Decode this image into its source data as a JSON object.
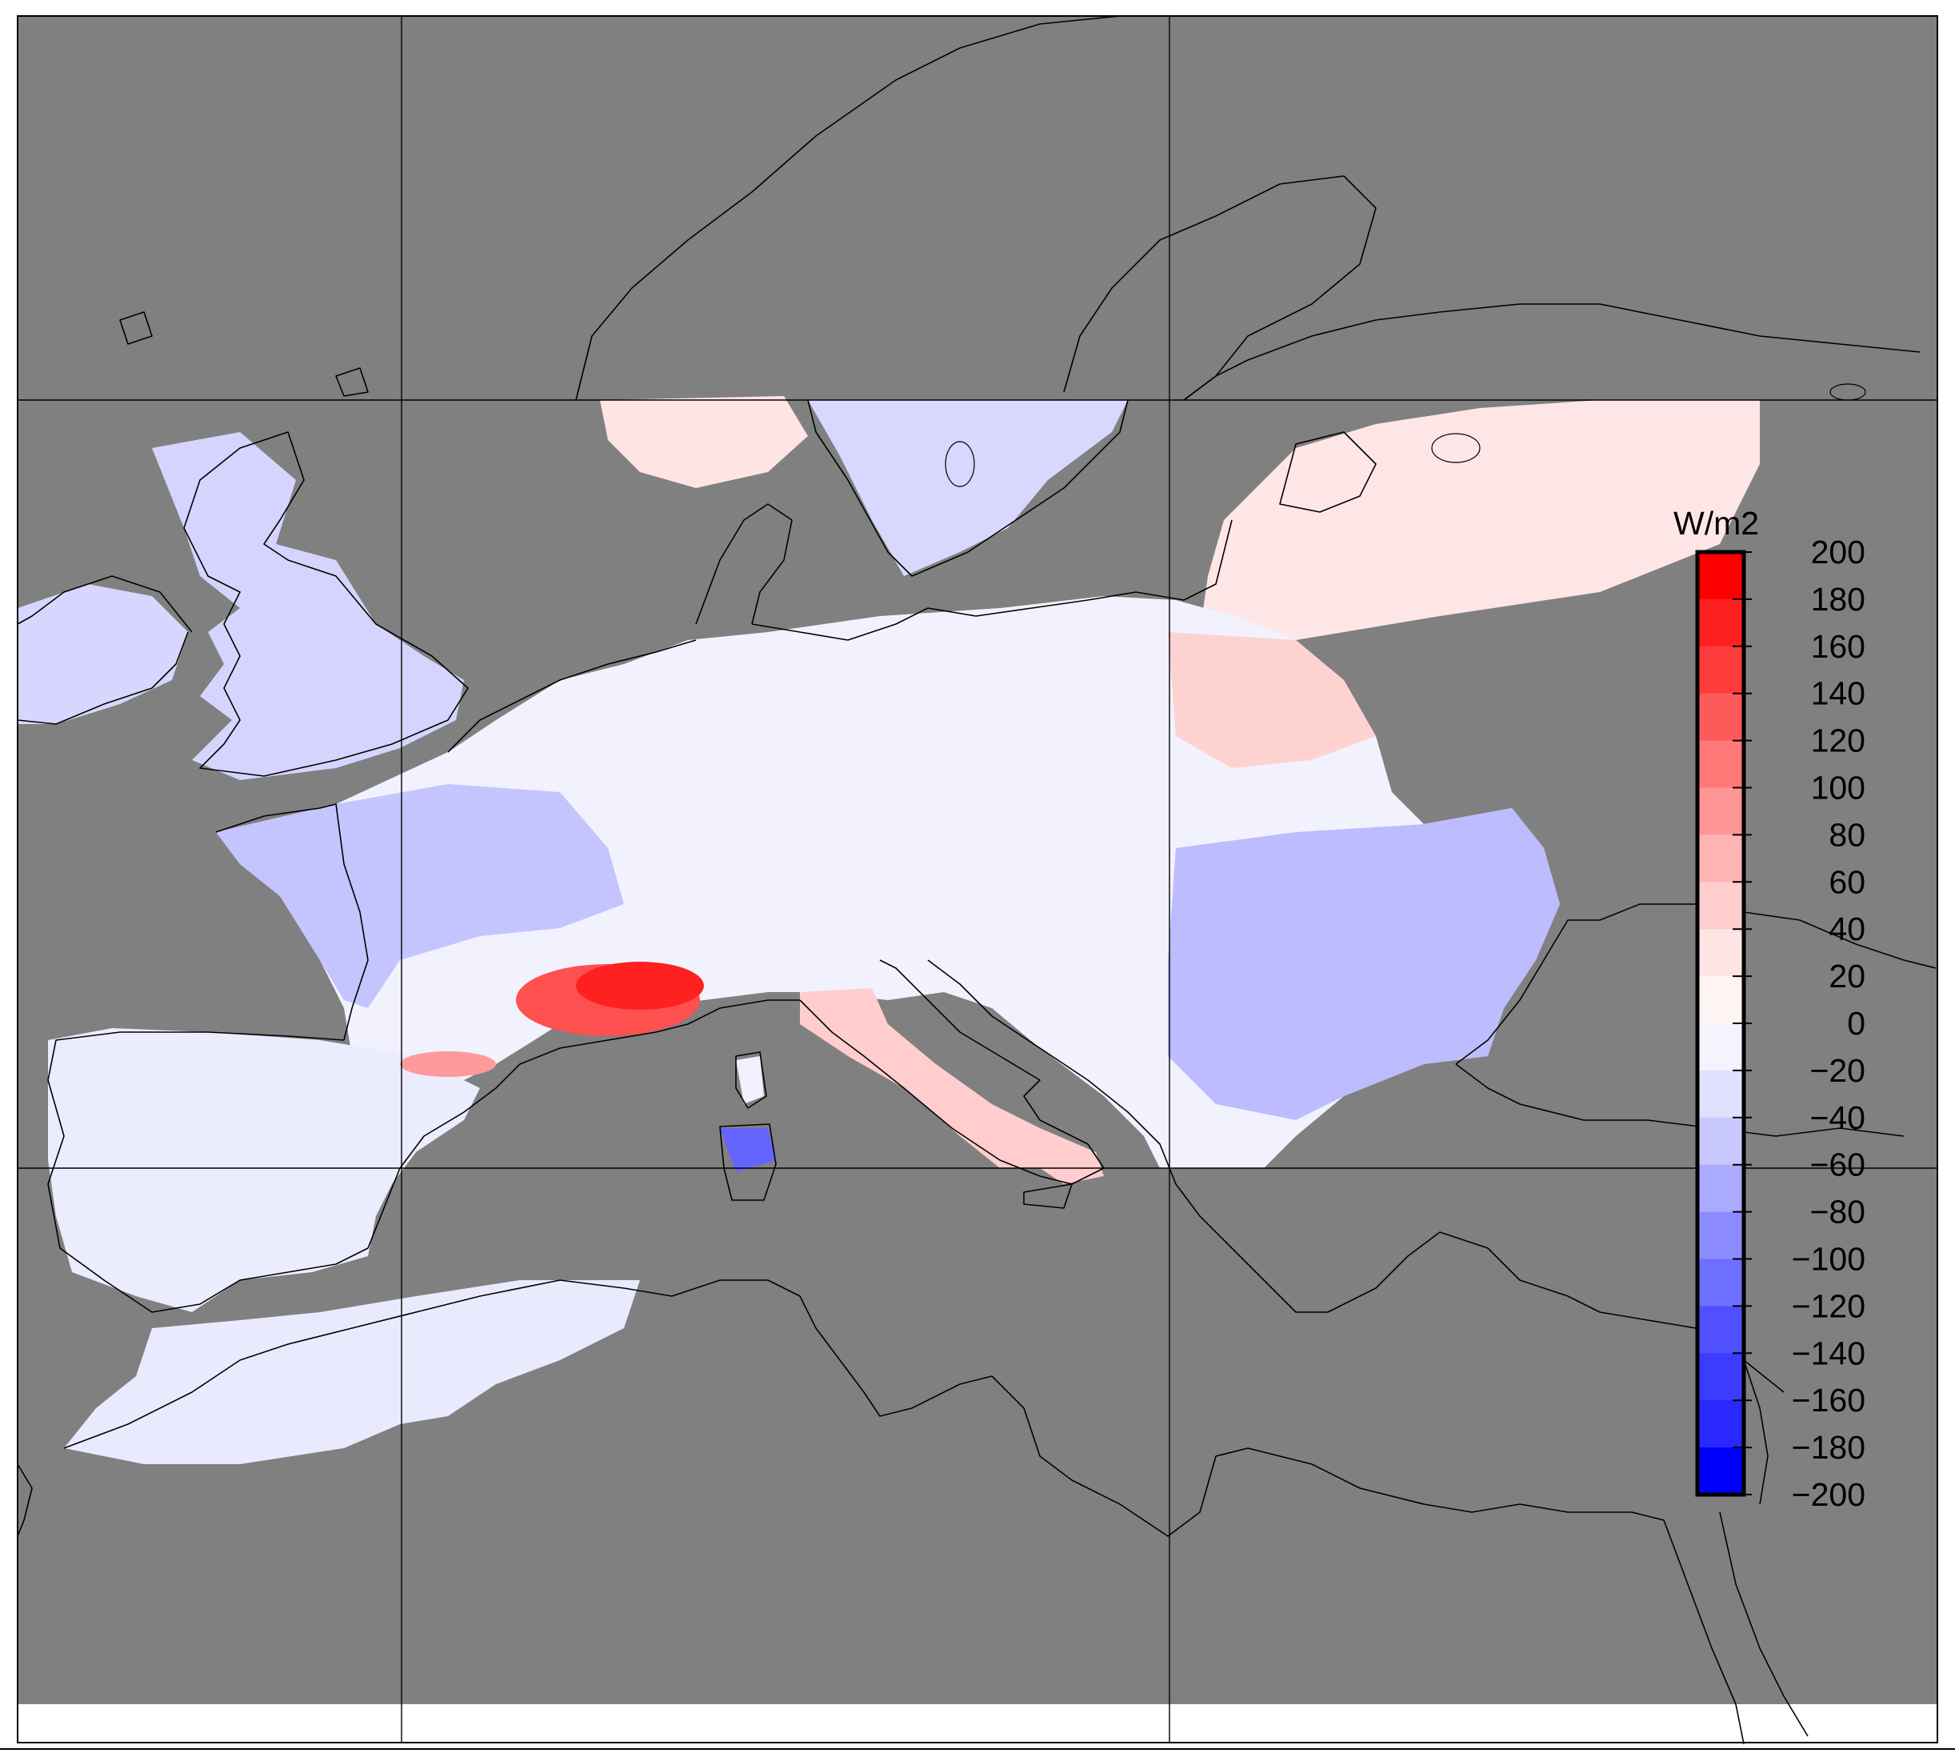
{
  "map": {
    "background_color": "#808080",
    "nodata_color": "#808080",
    "region_positive_color": "#ffb4b4",
    "region_negative_color": "#c8c8ff"
  },
  "colorbar": {
    "unit": "W/m2",
    "min": -200,
    "max": 200,
    "step": 20,
    "tick_labels": [
      "200",
      "180",
      "160",
      "140",
      "120",
      "100",
      "80",
      "60",
      "40",
      "20",
      "0",
      "−20",
      "−40",
      "−60",
      "−80",
      "−100",
      "−120",
      "−140",
      "−160",
      "−180",
      "−200"
    ],
    "colors_top_to_bottom": [
      "#ff0000",
      "#ff2020",
      "#ff3c3c",
      "#ff5a5a",
      "#ff7878",
      "#ff9696",
      "#ffb4b4",
      "#ffcdcd",
      "#ffe4e4",
      "#fff4f4",
      "#f4f4ff",
      "#e0e0ff",
      "#c8c8ff",
      "#aaaaff",
      "#8c8cff",
      "#6e6eff",
      "#5050ff",
      "#3c3cff",
      "#2828ff",
      "#0000ff"
    ]
  }
}
